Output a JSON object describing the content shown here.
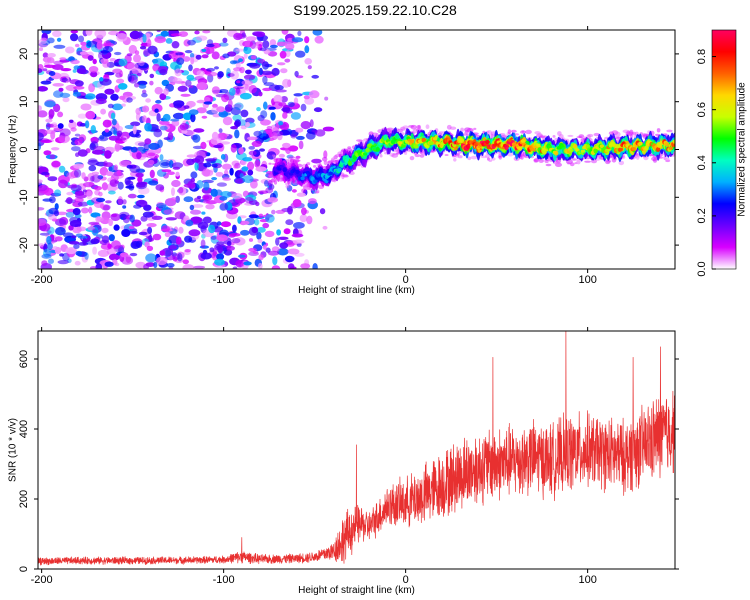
{
  "title": "S199.2025.159.22.10.C28",
  "chart_data": [
    {
      "type": "heatmap",
      "xlabel": "Height of straight line (km)",
      "ylabel": "Frequency (Hz)",
      "xlim": [
        -202,
        148
      ],
      "ylim": [
        -25,
        25
      ],
      "xticks": [
        -200,
        -100,
        0,
        100
      ],
      "yticks": [
        -20,
        -10,
        0,
        10,
        20
      ],
      "colorbar": {
        "label": "Normalized spectral amplitude",
        "range": [
          0,
          0.9
        ],
        "ticks": [
          "0.0",
          "0.2",
          "0.4",
          "0.6",
          "0.8"
        ],
        "colors": [
          "#ffffff",
          "#d800ff",
          "#6a00ff",
          "#0000ff",
          "#00b0ff",
          "#00ffc0",
          "#00ff00",
          "#c8ff00",
          "#ffd800",
          "#ff6000",
          "#ff0000",
          "#ff0060"
        ]
      },
      "ridge": {
        "x": [
          -70,
          -60,
          -50,
          -40,
          -35,
          -30,
          -20,
          -10,
          0,
          20,
          40,
          60,
          80,
          100,
          120,
          148
        ],
        "freq_hz": [
          -4,
          -5,
          -6,
          -5,
          -3,
          -2,
          0,
          2,
          1.5,
          1.5,
          1,
          1,
          0,
          0,
          0.5,
          1
        ],
        "amplitude": [
          0.2,
          0.25,
          0.3,
          0.35,
          0.4,
          0.45,
          0.5,
          0.55,
          0.6,
          0.7,
          0.8,
          0.8,
          0.6,
          0.55,
          0.7,
          0.65
        ]
      },
      "noise_region_x": [
        -202,
        -55
      ]
    },
    {
      "type": "line",
      "xlabel": "Height of straight line (km)",
      "ylabel": "SNR (10 * v/v)",
      "xlim": [
        -202,
        148
      ],
      "ylim": [
        0,
        680
      ],
      "xticks": [
        -200,
        -100,
        0,
        100
      ],
      "yticks": [
        0,
        200,
        400,
        600
      ],
      "series": [
        {
          "color": "#e83030",
          "x": [
            -202,
            -180,
            -150,
            -120,
            -100,
            -90,
            -80,
            -60,
            -50,
            -40,
            -35,
            -30,
            -25,
            -20,
            -15,
            -10,
            0,
            10,
            20,
            30,
            40,
            50,
            60,
            70,
            80,
            90,
            100,
            110,
            120,
            130,
            140,
            148
          ],
          "y": [
            22,
            24,
            24,
            25,
            27,
            35,
            28,
            30,
            35,
            50,
            80,
            110,
            130,
            120,
            150,
            180,
            190,
            210,
            240,
            270,
            290,
            300,
            310,
            320,
            310,
            330,
            340,
            330,
            320,
            350,
            380,
            400
          ],
          "noise_amplitude": [
            12,
            12,
            12,
            12,
            12,
            20,
            15,
            15,
            18,
            30,
            80,
            80,
            60,
            50,
            60,
            70,
            80,
            100,
            110,
            120,
            120,
            120,
            120,
            120,
            120,
            130,
            120,
            120,
            120,
            130,
            140,
            140
          ],
          "peaks": [
            {
              "x": -90,
              "y": 90
            },
            {
              "x": -27,
              "y": 355
            },
            {
              "x": 48,
              "y": 605
            },
            {
              "x": 88,
              "y": 680
            },
            {
              "x": 125,
              "y": 605
            },
            {
              "x": 140,
              "y": 635
            }
          ]
        }
      ]
    }
  ]
}
